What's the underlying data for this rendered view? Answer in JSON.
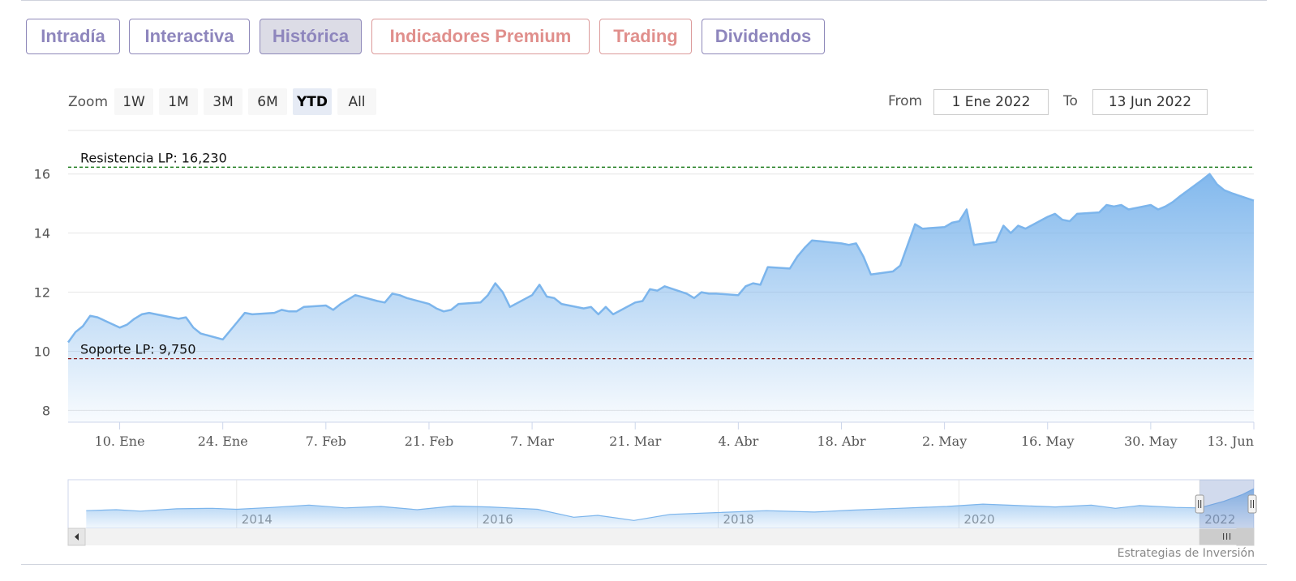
{
  "tabs": [
    {
      "label": "Intradía",
      "style": "normal",
      "active": false
    },
    {
      "label": "Interactiva",
      "style": "normal",
      "active": false
    },
    {
      "label": "Histórica",
      "style": "normal",
      "active": true
    },
    {
      "label": "Indicadores Premium",
      "style": "premium",
      "active": false
    },
    {
      "label": "Trading",
      "style": "premium",
      "active": false
    },
    {
      "label": "Dividendos",
      "style": "normal",
      "active": false
    }
  ],
  "zoom": {
    "label": "Zoom",
    "buttons": [
      "1W",
      "1M",
      "3M",
      "6M",
      "YTD",
      "All"
    ],
    "selected": "YTD"
  },
  "range": {
    "from_label": "From",
    "from_value": "1 Ene 2022",
    "to_label": "To",
    "to_value": "13 Jun 2022"
  },
  "credit": "Estrategias de Inversión",
  "colors": {
    "series": "#7cb5ec",
    "resistance": "#1a7a1a",
    "support": "#8b1a1a",
    "tab_text": "#8e86bd",
    "tab_premium": "#e08f8c"
  },
  "chart_data": {
    "type": "area",
    "x_start": "2022-01-03",
    "x_end": "2022-06-13",
    "ylim": [
      7.6,
      17.5
    ],
    "yticks": [
      8,
      10,
      12,
      14,
      16
    ],
    "ytick_labels": [
      "8",
      "10",
      "12",
      "14",
      "16"
    ],
    "xtick_labels": [
      {
        "date": "2022-01-10",
        "label": "10. Ene"
      },
      {
        "date": "2022-01-24",
        "label": "24. Ene"
      },
      {
        "date": "2022-02-07",
        "label": "7. Feb"
      },
      {
        "date": "2022-02-21",
        "label": "21. Feb"
      },
      {
        "date": "2022-03-07",
        "label": "7. Mar"
      },
      {
        "date": "2022-03-21",
        "label": "21. Mar"
      },
      {
        "date": "2022-04-04",
        "label": "4. Abr"
      },
      {
        "date": "2022-04-18",
        "label": "18. Abr"
      },
      {
        "date": "2022-05-02",
        "label": "2. May"
      },
      {
        "date": "2022-05-16",
        "label": "16. May"
      },
      {
        "date": "2022-05-30",
        "label": "30. May"
      },
      {
        "date": "2022-06-13",
        "label": "13. Jun"
      }
    ],
    "grid": true,
    "series": [
      {
        "x": [
          "2022-01-03",
          "2022-01-04",
          "2022-01-05",
          "2022-01-06",
          "2022-01-07",
          "2022-01-10",
          "2022-01-11",
          "2022-01-12",
          "2022-01-13",
          "2022-01-14",
          "2022-01-17",
          "2022-01-18",
          "2022-01-19",
          "2022-01-20",
          "2022-01-21",
          "2022-01-24",
          "2022-01-25",
          "2022-01-26",
          "2022-01-27",
          "2022-01-28",
          "2022-01-31",
          "2022-02-01",
          "2022-02-02",
          "2022-02-03",
          "2022-02-04",
          "2022-02-07",
          "2022-02-08",
          "2022-02-09",
          "2022-02-10",
          "2022-02-11",
          "2022-02-14",
          "2022-02-15",
          "2022-02-16",
          "2022-02-17",
          "2022-02-18",
          "2022-02-21",
          "2022-02-22",
          "2022-02-23",
          "2022-02-24",
          "2022-02-25",
          "2022-02-28",
          "2022-03-01",
          "2022-03-02",
          "2022-03-03",
          "2022-03-04",
          "2022-03-07",
          "2022-03-08",
          "2022-03-09",
          "2022-03-10",
          "2022-03-11",
          "2022-03-14",
          "2022-03-15",
          "2022-03-16",
          "2022-03-17",
          "2022-03-18",
          "2022-03-21",
          "2022-03-22",
          "2022-03-23",
          "2022-03-24",
          "2022-03-25",
          "2022-03-28",
          "2022-03-29",
          "2022-03-30",
          "2022-03-31",
          "2022-04-01",
          "2022-04-04",
          "2022-04-05",
          "2022-04-06",
          "2022-04-07",
          "2022-04-08",
          "2022-04-11",
          "2022-04-12",
          "2022-04-13",
          "2022-04-14",
          "2022-04-18",
          "2022-04-19",
          "2022-04-20",
          "2022-04-21",
          "2022-04-22",
          "2022-04-25",
          "2022-04-26",
          "2022-04-27",
          "2022-04-28",
          "2022-04-29",
          "2022-05-02",
          "2022-05-03",
          "2022-05-04",
          "2022-05-05",
          "2022-05-06",
          "2022-05-09",
          "2022-05-10",
          "2022-05-11",
          "2022-05-12",
          "2022-05-13",
          "2022-05-16",
          "2022-05-17",
          "2022-05-18",
          "2022-05-19",
          "2022-05-20",
          "2022-05-23",
          "2022-05-24",
          "2022-05-25",
          "2022-05-26",
          "2022-05-27",
          "2022-05-30",
          "2022-05-31",
          "2022-06-01",
          "2022-06-02",
          "2022-06-03",
          "2022-06-06",
          "2022-06-07",
          "2022-06-08",
          "2022-06-09",
          "2022-06-10",
          "2022-06-13"
        ],
        "values": [
          10.3,
          10.65,
          10.85,
          11.2,
          11.15,
          10.8,
          10.9,
          11.1,
          11.25,
          11.3,
          11.15,
          11.1,
          11.15,
          10.8,
          10.6,
          10.4,
          10.7,
          11.0,
          11.3,
          11.25,
          11.3,
          11.4,
          11.35,
          11.35,
          11.5,
          11.55,
          11.4,
          11.6,
          11.75,
          11.9,
          11.7,
          11.65,
          11.95,
          11.9,
          11.8,
          11.6,
          11.45,
          11.35,
          11.4,
          11.6,
          11.65,
          11.9,
          12.3,
          12.0,
          11.5,
          11.9,
          12.25,
          11.85,
          11.8,
          11.6,
          11.45,
          11.5,
          11.25,
          11.5,
          11.25,
          11.65,
          11.7,
          12.1,
          12.05,
          12.2,
          11.95,
          11.8,
          12.0,
          11.95,
          11.95,
          11.9,
          12.2,
          12.3,
          12.25,
          12.85,
          12.8,
          13.2,
          13.5,
          13.75,
          13.65,
          13.6,
          13.65,
          13.2,
          12.6,
          12.7,
          12.9,
          13.6,
          14.3,
          14.15,
          14.2,
          14.35,
          14.4,
          14.8,
          13.6,
          13.7,
          14.25,
          14.0,
          14.25,
          14.15,
          14.55,
          14.65,
          14.45,
          14.4,
          14.65,
          14.7,
          14.95,
          14.9,
          14.95,
          14.8,
          14.95,
          14.8,
          14.9,
          15.05,
          15.25,
          15.8,
          16.0,
          15.65,
          15.45,
          15.35,
          15.1
        ]
      }
    ],
    "plotlines": [
      {
        "label": "Resistencia LP: 16,230",
        "value": 16.23,
        "color": "#1a7a1a"
      },
      {
        "label": "Soporte LP: 9,750",
        "value": 9.75,
        "color": "#8b1a1a"
      }
    ],
    "navigator": {
      "year_labels": [
        "2014",
        "2016",
        "2018",
        "2020",
        "2022"
      ],
      "x_start": 2012.6,
      "x_end": 2022.45,
      "selection_start": 2022.0,
      "selection_end": 2022.45,
      "profile": [
        {
          "x": 2012.75,
          "y": 10.4
        },
        {
          "x": 2013.0,
          "y": 10.6
        },
        {
          "x": 2013.2,
          "y": 10.3
        },
        {
          "x": 2013.5,
          "y": 10.8
        },
        {
          "x": 2013.8,
          "y": 10.9
        },
        {
          "x": 2014.0,
          "y": 10.7
        },
        {
          "x": 2014.3,
          "y": 11.1
        },
        {
          "x": 2014.6,
          "y": 11.6
        },
        {
          "x": 2014.9,
          "y": 11.0
        },
        {
          "x": 2015.2,
          "y": 11.3
        },
        {
          "x": 2015.5,
          "y": 10.6
        },
        {
          "x": 2015.8,
          "y": 11.4
        },
        {
          "x": 2016.1,
          "y": 11.2
        },
        {
          "x": 2016.5,
          "y": 10.7
        },
        {
          "x": 2016.8,
          "y": 9.0
        },
        {
          "x": 2017.0,
          "y": 9.4
        },
        {
          "x": 2017.3,
          "y": 8.3
        },
        {
          "x": 2017.6,
          "y": 9.6
        },
        {
          "x": 2018.0,
          "y": 10.0
        },
        {
          "x": 2018.4,
          "y": 10.4
        },
        {
          "x": 2018.8,
          "y": 10.1
        },
        {
          "x": 2019.1,
          "y": 10.5
        },
        {
          "x": 2019.5,
          "y": 10.9
        },
        {
          "x": 2019.9,
          "y": 11.3
        },
        {
          "x": 2020.2,
          "y": 11.8
        },
        {
          "x": 2020.5,
          "y": 11.5
        },
        {
          "x": 2020.8,
          "y": 11.2
        },
        {
          "x": 2021.1,
          "y": 11.6
        },
        {
          "x": 2021.3,
          "y": 10.9
        },
        {
          "x": 2021.5,
          "y": 11.5
        },
        {
          "x": 2021.8,
          "y": 11.1
        },
        {
          "x": 2022.0,
          "y": 11.0
        },
        {
          "x": 2022.2,
          "y": 12.4
        },
        {
          "x": 2022.35,
          "y": 13.8
        },
        {
          "x": 2022.45,
          "y": 15.1
        }
      ]
    }
  }
}
